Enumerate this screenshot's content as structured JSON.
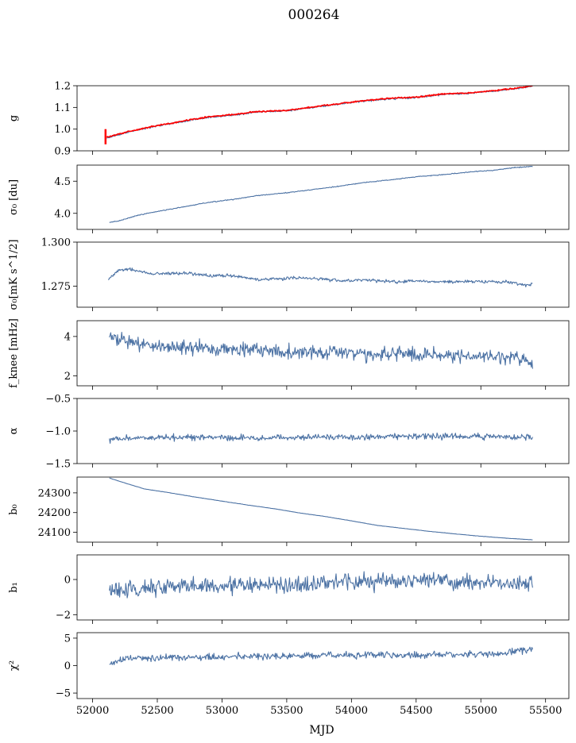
{
  "figure": {
    "title": "000264",
    "xlabel": "MJD"
  },
  "colors": {
    "series": "#4c72a4",
    "fit": "#ff0000",
    "axis": "#000000"
  },
  "chart_data": [
    {
      "type": "line",
      "id": "g",
      "ylabel": "g",
      "xlim": [
        51880,
        55680
      ],
      "ylim": [
        0.9,
        1.2
      ],
      "yticks": [
        0.9,
        1.0,
        1.1,
        1.2
      ],
      "yticklabels": [
        "0.9",
        "1.0",
        "1.1",
        "1.2"
      ],
      "series": [
        {
          "points": [
            [
              52110,
              0.96
            ],
            [
              52300,
              0.99
            ],
            [
              52500,
              1.015
            ],
            [
              52700,
              1.035
            ],
            [
              52900,
              1.055
            ],
            [
              53100,
              1.065
            ],
            [
              53250,
              1.078
            ],
            [
              53500,
              1.085
            ],
            [
              53700,
              1.1
            ],
            [
              53900,
              1.115
            ],
            [
              54100,
              1.13
            ],
            [
              54300,
              1.14
            ],
            [
              54500,
              1.145
            ],
            [
              54700,
              1.16
            ],
            [
              54900,
              1.165
            ],
            [
              55100,
              1.175
            ],
            [
              55250,
              1.185
            ],
            [
              55400,
              1.198
            ]
          ],
          "noise": 0.004
        }
      ],
      "overlay": {
        "points": [
          [
            52110,
            0.962
          ],
          [
            52300,
            0.992
          ],
          [
            52500,
            1.017
          ],
          [
            52700,
            1.037
          ],
          [
            52900,
            1.057
          ],
          [
            53100,
            1.067
          ],
          [
            53250,
            1.08
          ],
          [
            53500,
            1.087
          ],
          [
            53700,
            1.102
          ],
          [
            53900,
            1.117
          ],
          [
            54100,
            1.132
          ],
          [
            54300,
            1.142
          ],
          [
            54500,
            1.147
          ],
          [
            54700,
            1.162
          ],
          [
            54900,
            1.167
          ],
          [
            55100,
            1.177
          ],
          [
            55250,
            1.187
          ],
          [
            55400,
            1.2
          ]
        ],
        "noise": 0.003,
        "errorbar": {
          "x": 52100,
          "ymin": 0.93,
          "ymax": 1.0
        }
      }
    },
    {
      "type": "line",
      "id": "sigma0",
      "ylabel": "σ₀ [du]",
      "xlim": [
        51880,
        55680
      ],
      "ylim": [
        3.75,
        4.75
      ],
      "yticks": [
        4.0,
        4.5
      ],
      "yticklabels": [
        "4.0",
        "4.5"
      ],
      "series": [
        {
          "points": [
            [
              52130,
              3.86
            ],
            [
              52200,
              3.88
            ],
            [
              52350,
              3.97
            ],
            [
              52500,
              4.03
            ],
            [
              52700,
              4.1
            ],
            [
              52900,
              4.17
            ],
            [
              53100,
              4.22
            ],
            [
              53250,
              4.27
            ],
            [
              53500,
              4.32
            ],
            [
              53700,
              4.37
            ],
            [
              53900,
              4.42
            ],
            [
              54100,
              4.48
            ],
            [
              54300,
              4.52
            ],
            [
              54500,
              4.57
            ],
            [
              54700,
              4.6
            ],
            [
              54900,
              4.64
            ],
            [
              55100,
              4.67
            ],
            [
              55250,
              4.71
            ],
            [
              55400,
              4.73
            ]
          ],
          "noise": 0.006
        }
      ]
    },
    {
      "type": "line",
      "id": "sigma0_mk",
      "ylabel": "σ₀[mK s^1/2]",
      "xlim": [
        51880,
        55680
      ],
      "ylim": [
        1.263,
        1.3
      ],
      "yticks": [
        1.275,
        1.3
      ],
      "yticklabels": [
        "1.275",
        "1.300"
      ],
      "series": [
        {
          "points": [
            [
              52120,
              1.2785
            ],
            [
              52200,
              1.284
            ],
            [
              52300,
              1.2845
            ],
            [
              52450,
              1.282
            ],
            [
              52700,
              1.2825
            ],
            [
              52900,
              1.281
            ],
            [
              53100,
              1.281
            ],
            [
              53300,
              1.2785
            ],
            [
              53500,
              1.2795
            ],
            [
              53700,
              1.2795
            ],
            [
              53900,
              1.278
            ],
            [
              54100,
              1.2785
            ],
            [
              54300,
              1.2775
            ],
            [
              54500,
              1.2778
            ],
            [
              54700,
              1.2775
            ],
            [
              54900,
              1.2775
            ],
            [
              55100,
              1.2775
            ],
            [
              55250,
              1.2772
            ],
            [
              55350,
              1.275
            ],
            [
              55400,
              1.2765
            ]
          ],
          "noise": 0.0009
        }
      ]
    },
    {
      "type": "line",
      "id": "fknee",
      "ylabel": "f_knee [mHz]",
      "xlim": [
        51880,
        55680
      ],
      "ylim": [
        1.5,
        4.8
      ],
      "yticks": [
        2,
        4
      ],
      "yticklabels": [
        "2",
        "4"
      ],
      "series": [
        {
          "points": [
            [
              52130,
              4.0
            ],
            [
              52300,
              3.7
            ],
            [
              52500,
              3.5
            ],
            [
              52800,
              3.4
            ],
            [
              53100,
              3.35
            ],
            [
              53400,
              3.25
            ],
            [
              53700,
              3.2
            ],
            [
              54000,
              3.15
            ],
            [
              54300,
              3.1
            ],
            [
              54600,
              3.05
            ],
            [
              54900,
              3.0
            ],
            [
              55100,
              3.0
            ],
            [
              55300,
              2.9
            ],
            [
              55400,
              2.6
            ]
          ],
          "noise": 0.35
        }
      ]
    },
    {
      "type": "line",
      "id": "alpha",
      "ylabel": "α",
      "xlim": [
        51880,
        55680
      ],
      "ylim": [
        -1.5,
        -0.5
      ],
      "yticks": [
        -1.5,
        -1.0,
        -0.5
      ],
      "yticklabels": [
        "−1.5",
        "−1.0",
        "−0.5"
      ],
      "series": [
        {
          "points": [
            [
              52130,
              -1.12
            ],
            [
              52500,
              -1.1
            ],
            [
              53000,
              -1.1
            ],
            [
              53500,
              -1.1
            ],
            [
              54000,
              -1.09
            ],
            [
              54500,
              -1.08
            ],
            [
              55000,
              -1.08
            ],
            [
              55400,
              -1.1
            ]
          ],
          "noise": 0.045
        }
      ]
    },
    {
      "type": "line",
      "id": "b0",
      "ylabel": "b₀",
      "xlim": [
        51880,
        55680
      ],
      "ylim": [
        24050,
        24380
      ],
      "yticks": [
        24100,
        24200,
        24300
      ],
      "yticklabels": [
        "24100",
        "24200",
        "24300"
      ],
      "series": [
        {
          "points": [
            [
              52130,
              24375
            ],
            [
              52250,
              24350
            ],
            [
              52400,
              24320
            ],
            [
              52600,
              24300
            ],
            [
              52800,
              24278
            ],
            [
              53000,
              24258
            ],
            [
              53200,
              24238
            ],
            [
              53400,
              24220
            ],
            [
              53600,
              24198
            ],
            [
              53800,
              24180
            ],
            [
              54000,
              24158
            ],
            [
              54200,
              24135
            ],
            [
              54400,
              24120
            ],
            [
              54600,
              24105
            ],
            [
              54800,
              24092
            ],
            [
              55000,
              24080
            ],
            [
              55200,
              24070
            ],
            [
              55400,
              24062
            ]
          ],
          "noise": 0.7
        }
      ]
    },
    {
      "type": "line",
      "id": "b1",
      "ylabel": "b₁",
      "xlim": [
        51880,
        55680
      ],
      "ylim": [
        -2.3,
        1.4
      ],
      "yticks": [
        -2,
        0
      ],
      "yticklabels": [
        "−2",
        "0"
      ],
      "series": [
        {
          "points": [
            [
              52130,
              -0.6
            ],
            [
              52500,
              -0.45
            ],
            [
              53000,
              -0.35
            ],
            [
              53500,
              -0.3
            ],
            [
              54000,
              -0.15
            ],
            [
              54500,
              -0.05
            ],
            [
              55000,
              -0.15
            ],
            [
              55400,
              -0.3
            ]
          ],
          "noise": 0.45
        }
      ]
    },
    {
      "type": "line",
      "id": "chi2",
      "ylabel": "χ²",
      "xlim": [
        51880,
        55680
      ],
      "ylim": [
        -6,
        6
      ],
      "yticks": [
        -5,
        0,
        5
      ],
      "yticklabels": [
        "−5",
        "0",
        "5"
      ],
      "series": [
        {
          "points": [
            [
              52130,
              0.5
            ],
            [
              52300,
              1.4
            ],
            [
              52800,
              1.5
            ],
            [
              53300,
              1.7
            ],
            [
              53800,
              1.9
            ],
            [
              54300,
              2.0
            ],
            [
              54800,
              2.0
            ],
            [
              55200,
              2.3
            ],
            [
              55400,
              3.0
            ]
          ],
          "noise": 0.6
        }
      ]
    }
  ],
  "xaxis": {
    "ticks": [
      52000,
      52500,
      53000,
      53500,
      54000,
      54500,
      55000,
      55500
    ],
    "ticklabels": [
      "52000",
      "52500",
      "53000",
      "53500",
      "54000",
      "54500",
      "55000",
      "55500"
    ]
  }
}
